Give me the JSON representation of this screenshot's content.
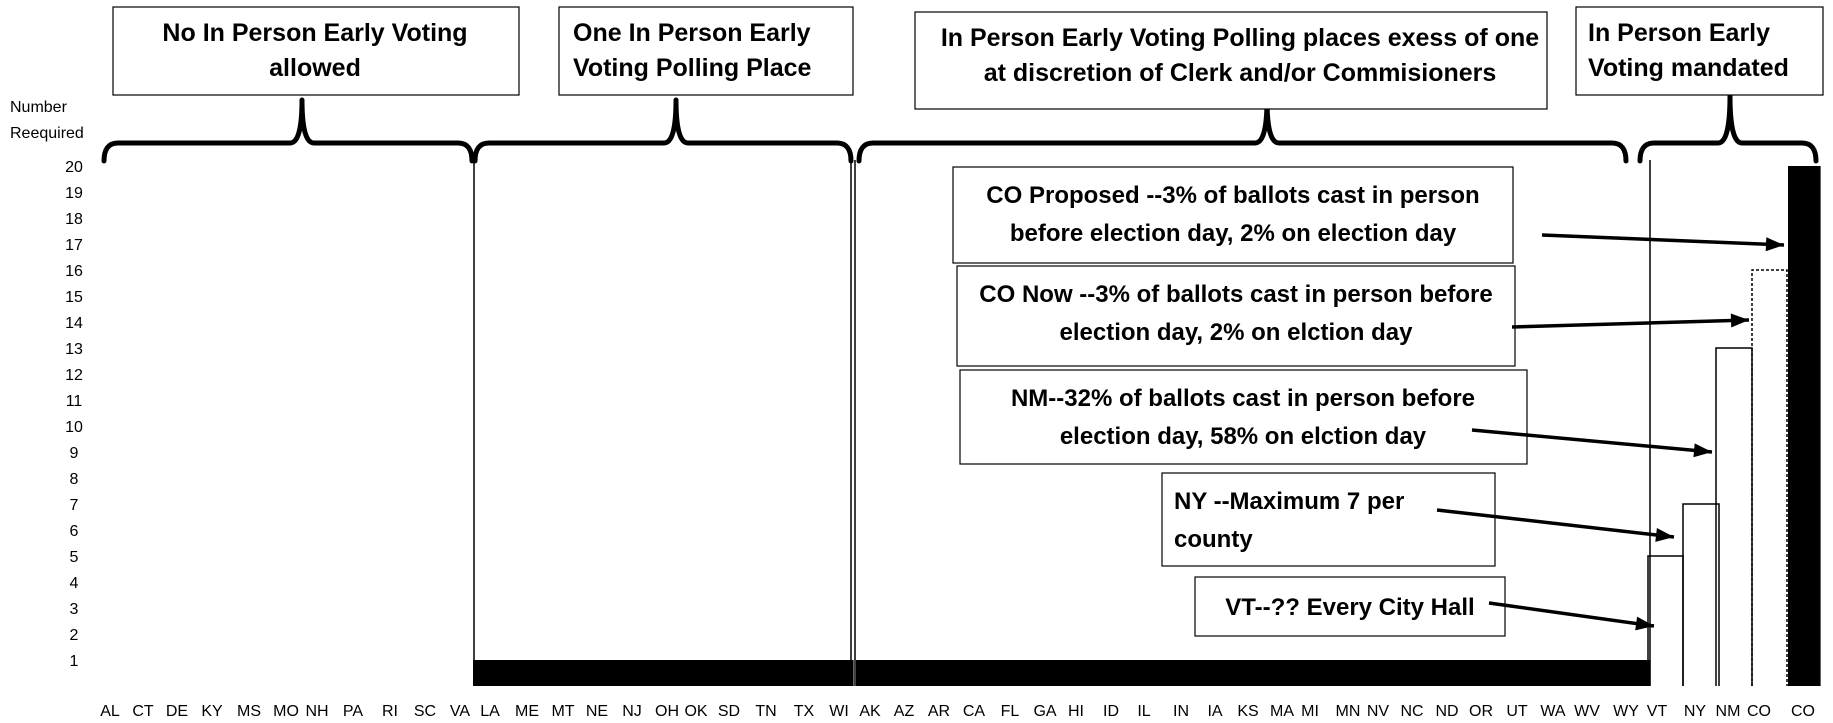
{
  "chart_data": {
    "type": "bar",
    "ylabel": "Number Reequired",
    "y_ticks": [
      1,
      2,
      3,
      4,
      5,
      6,
      7,
      8,
      9,
      10,
      11,
      12,
      13,
      14,
      15,
      16,
      17,
      18,
      19,
      20
    ],
    "ylim": [
      0,
      20
    ],
    "categories": [
      "AL",
      "CT",
      "DE",
      "KY",
      "MS",
      "MO",
      "NH",
      "PA",
      "RI",
      "SC",
      "VA",
      "LA",
      "ME",
      "MT",
      "NE",
      "NJ",
      "OH",
      "OK",
      "SD",
      "TN",
      "TX",
      "WI",
      "AK",
      "AZ",
      "AR",
      "CA",
      "FL",
      "GA",
      "HI",
      "ID",
      "IL",
      "IN",
      "IA",
      "KS",
      "MA",
      "MI",
      "MN",
      "NV",
      "NC",
      "ND",
      "OR",
      "UT",
      "WA",
      "WV",
      "WY",
      "VT",
      "NY",
      "NM",
      "CO",
      "CO"
    ],
    "values": [
      0,
      0,
      0,
      0,
      0,
      0,
      0,
      0,
      0,
      0,
      0,
      1,
      1,
      1,
      1,
      1,
      1,
      1,
      1,
      1,
      1,
      1,
      1,
      1,
      1,
      1,
      1,
      1,
      1,
      1,
      1,
      1,
      1,
      1,
      1,
      1,
      1,
      1,
      1,
      1,
      1,
      1,
      1,
      1,
      1,
      5,
      7,
      13,
      16,
      20
    ],
    "bar_styles": [
      "none",
      "none",
      "none",
      "none",
      "none",
      "none",
      "none",
      "none",
      "none",
      "none",
      "none",
      "solid",
      "solid",
      "solid",
      "solid",
      "solid",
      "solid",
      "solid",
      "solid",
      "solid",
      "solid",
      "solid",
      "solid",
      "solid",
      "solid",
      "solid",
      "solid",
      "solid",
      "solid",
      "solid",
      "solid",
      "solid",
      "solid",
      "solid",
      "solid",
      "solid",
      "solid",
      "solid",
      "solid",
      "solid",
      "solid",
      "solid",
      "solid",
      "solid",
      "solid",
      "outline",
      "outline",
      "outline",
      "outline",
      "solid"
    ],
    "colors": {
      "bar": "#000000",
      "outline": "#000000",
      "background": "#ffffff"
    },
    "groups": [
      {
        "label_lines": [
          "No In Person Early Voting",
          "allowed"
        ]
      },
      {
        "label_lines": [
          "One In Person Early",
          "Voting Polling Place"
        ]
      },
      {
        "label_lines": [
          "In Person Early Voting Polling places exess of one",
          "at discretion of Clerk and/or Commisioners"
        ]
      },
      {
        "label_lines": [
          "In Person Early",
          "Voting mandated"
        ]
      }
    ],
    "annotations": [
      {
        "lines": [
          "CO Proposed --3% of ballots cast in person",
          "before election day, 2% on election day"
        ]
      },
      {
        "lines": [
          "CO Now --3% of ballots cast in person before",
          "election day, 2% on elction day"
        ]
      },
      {
        "lines": [
          "NM--32% of ballots cast in person before",
          "election day, 58% on elction day"
        ]
      },
      {
        "lines": [
          "NY --Maximum 7 per",
          "county"
        ]
      },
      {
        "lines": [
          "VT--?? Every City Hall"
        ]
      }
    ]
  }
}
